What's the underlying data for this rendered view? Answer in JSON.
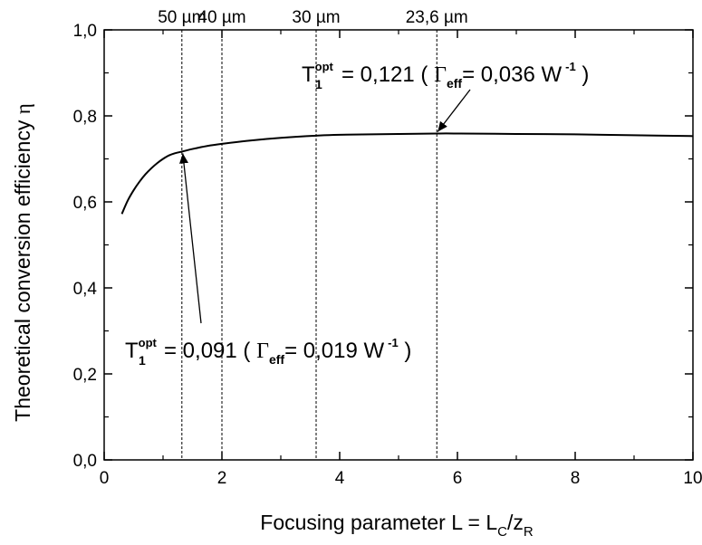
{
  "chart_data": {
    "type": "line",
    "xlabel_main": "Focusing parameter L = L",
    "xlabel_sub1": "C",
    "xlabel_mid": "/z",
    "xlabel_sub2": "R",
    "ylabel_main": "Theoretical conversion efficiency ",
    "ylabel_eta": "η",
    "xlim": [
      0,
      10
    ],
    "ylim": [
      0.0,
      1.0
    ],
    "x_ticks": [
      0,
      2,
      4,
      6,
      8,
      10
    ],
    "x_tick_labels": [
      "0",
      "2",
      "4",
      "6",
      "8",
      "10"
    ],
    "y_ticks": [
      0.0,
      0.2,
      0.4,
      0.6,
      0.8,
      1.0
    ],
    "y_tick_labels": [
      "0,0",
      "0,2",
      "0,4",
      "0,6",
      "0,8",
      "1,0"
    ],
    "series": [
      {
        "x": [
          0.3,
          0.4,
          0.5,
          0.6,
          0.7,
          0.8,
          0.9,
          1.0,
          1.1,
          1.2,
          1.32,
          1.5,
          1.75,
          2.0,
          2.5,
          3.0,
          3.6,
          4.0,
          5.0,
          5.65,
          6.0,
          7.0,
          8.0,
          9.0,
          10.0
        ],
        "y": [
          0.572,
          0.603,
          0.627,
          0.647,
          0.664,
          0.678,
          0.69,
          0.7,
          0.708,
          0.713,
          0.717,
          0.723,
          0.73,
          0.735,
          0.743,
          0.749,
          0.754,
          0.756,
          0.758,
          0.759,
          0.759,
          0.758,
          0.757,
          0.755,
          0.753
        ]
      }
    ],
    "vlines": [
      {
        "x": 1.32,
        "label": "50 µm"
      },
      {
        "x": 2.0,
        "label": "40 µm"
      },
      {
        "x": 3.6,
        "label": "30 µm"
      },
      {
        "x": 5.65,
        "label": "23,6 µm"
      }
    ],
    "annotations": [
      {
        "id": "upper",
        "T": "T",
        "T_sub": "1",
        "T_sup": "opt",
        "value": " = 0,121 ( ",
        "gamma": "Γ",
        "gamma_sub": "eff",
        "gamma_value": "= 0,036 W",
        "unit_sup": "-1",
        "close": " )",
        "arrow_to": {
          "x": 5.65,
          "y": 0.759
        }
      },
      {
        "id": "lower",
        "T": "T",
        "T_sub": "1",
        "T_sup": "opt",
        "value": " = 0,091 ( ",
        "gamma": "Γ",
        "gamma_sub": "eff",
        "gamma_value": "= 0,019 W",
        "unit_sup": "-1",
        "close": " )",
        "arrow_to": {
          "x": 1.32,
          "y": 0.717
        }
      }
    ]
  }
}
